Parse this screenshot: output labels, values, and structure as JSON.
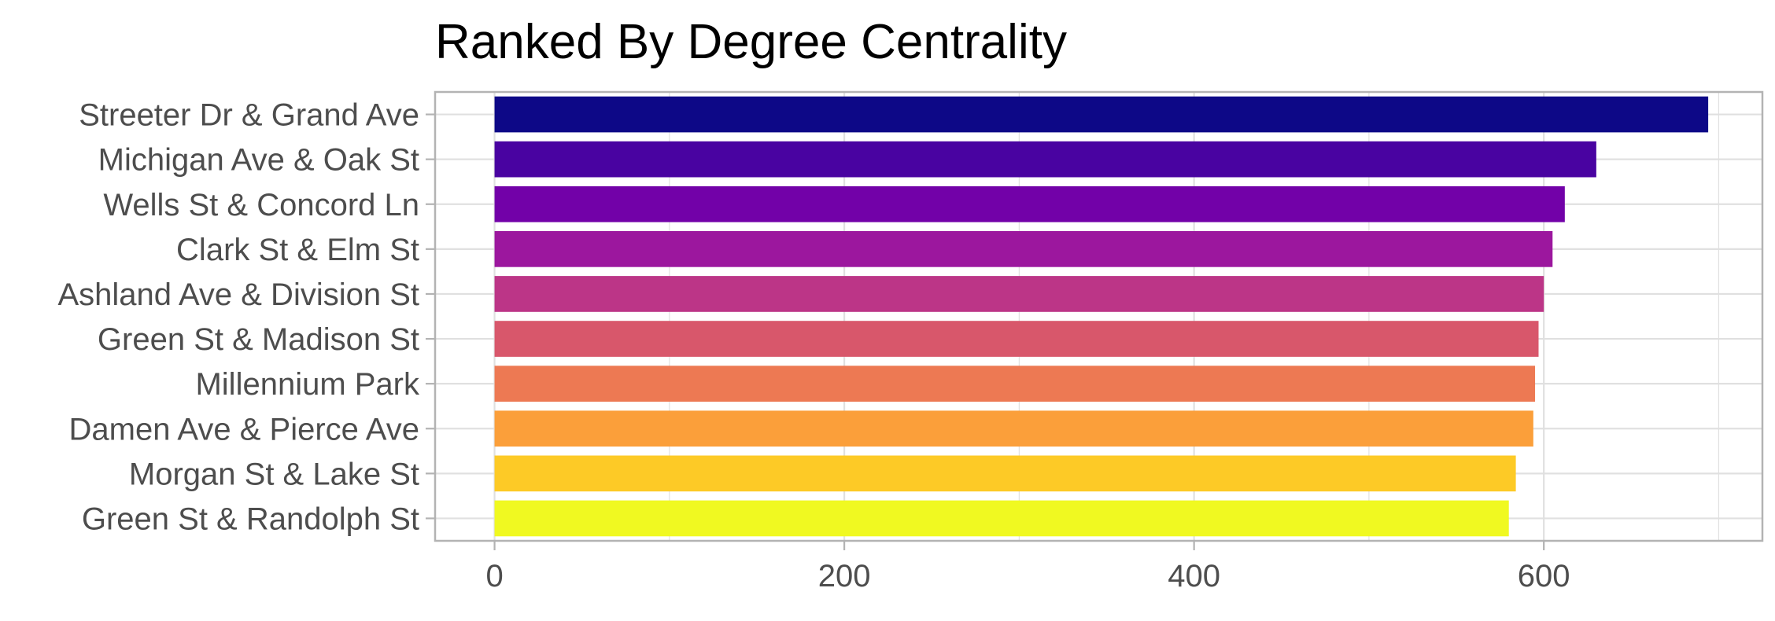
{
  "chart_data": {
    "type": "bar",
    "orientation": "horizontal",
    "title": "Ranked By Degree Centrality",
    "xlabel": "",
    "ylabel": "",
    "categories": [
      "Streeter Dr & Grand Ave",
      "Michigan Ave & Oak St",
      "Wells St & Concord Ln",
      "Clark St & Elm St",
      "Ashland Ave & Division St",
      "Green St & Madison St",
      "Millennium Park",
      "Damen Ave & Pierce Ave",
      "Morgan St & Lake St",
      "Green St & Randolph St"
    ],
    "values": [
      694,
      630,
      612,
      605,
      600,
      597,
      595,
      594,
      584,
      580
    ],
    "colors": [
      "#0d0887",
      "#4903a1",
      "#7201a8",
      "#9c179e",
      "#bc3587",
      "#d8576b",
      "#ed7953",
      "#fb9f3a",
      "#fdca26",
      "#f0f921"
    ],
    "xlim": [
      -34,
      725
    ],
    "x_ticks": [
      0,
      200,
      400,
      600
    ],
    "x_minor_ticks": [
      100,
      300,
      500,
      700
    ],
    "grid": true,
    "legend": "none",
    "panel_border_color": "#b3b3b3",
    "grid_color": "#e0e0e0",
    "tick_label_color": "#4d4d4d"
  }
}
